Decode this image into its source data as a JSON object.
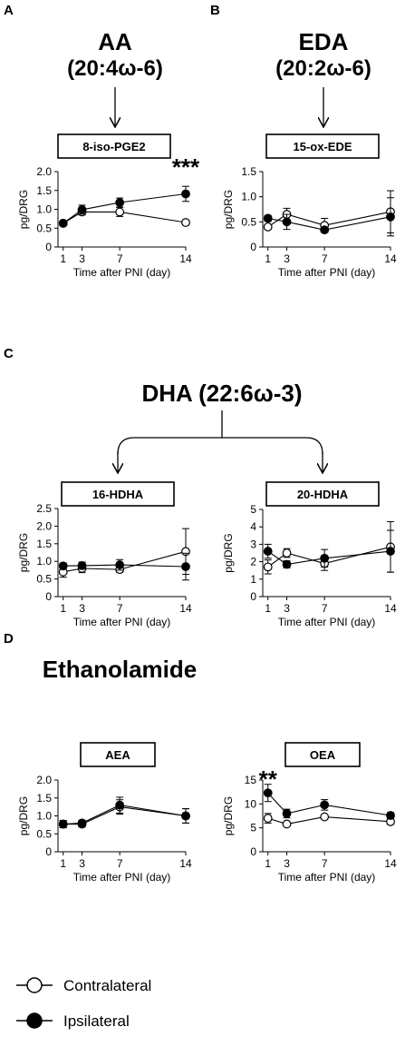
{
  "panels": {
    "A": {
      "letter": "A",
      "line1": "AA",
      "line2": "(20:4ω-6)"
    },
    "B": {
      "letter": "B",
      "line1": "EDA",
      "line2": "(20:2ω-6)"
    },
    "C": {
      "letter": "C",
      "line1": "DHA (22:6ω-3)"
    },
    "D": {
      "letter": "D",
      "line1": "Ethanolamide"
    }
  },
  "legend": {
    "contralateral": "Contralateral",
    "ipsilateral": "Ipsilateral"
  },
  "chart_data": [
    {
      "type": "line",
      "panel": "A",
      "title": "8-iso-PGE2",
      "xlabel": "Time after PNI (day)",
      "ylabel": "pg/DRG",
      "x": [
        1,
        3,
        7,
        14
      ],
      "ylim": [
        0,
        2.0
      ],
      "yticks": [
        "0",
        "0.5",
        "1.0",
        "1.5",
        "2.0"
      ],
      "yticks_values": [
        0,
        0.5,
        1.0,
        1.5,
        2.0
      ],
      "series": [
        {
          "name": "Contralateral",
          "values": [
            0.63,
            0.93,
            0.93,
            0.65
          ],
          "err": [
            0.03,
            0.08,
            0.12,
            0.06
          ]
        },
        {
          "name": "Ipsilateral",
          "values": [
            0.63,
            0.99,
            1.18,
            1.41
          ],
          "err": [
            0.03,
            0.12,
            0.12,
            0.2
          ]
        }
      ],
      "annotation": {
        "text": "***",
        "x": 14
      }
    },
    {
      "type": "line",
      "panel": "B",
      "title": "15-ox-EDE",
      "xlabel": "Time after PNI (day)",
      "ylabel": "pg/DRG",
      "x": [
        1,
        3,
        7,
        14
      ],
      "ylim": [
        0,
        1.5
      ],
      "yticks": [
        "0",
        "0.5",
        "1.0",
        "1.5"
      ],
      "yticks_values": [
        0,
        0.5,
        1.0,
        1.5
      ],
      "series": [
        {
          "name": "Contralateral",
          "values": [
            0.4,
            0.65,
            0.43,
            0.7
          ],
          "err": [
            0.04,
            0.12,
            0.14,
            0.42
          ]
        },
        {
          "name": "Ipsilateral",
          "values": [
            0.57,
            0.5,
            0.34,
            0.6
          ],
          "err": [
            0.06,
            0.15,
            0.05,
            0.38
          ]
        }
      ]
    },
    {
      "type": "line",
      "panel": "C",
      "title": "16-HDHA",
      "xlabel": "Time after PNI (day)",
      "ylabel": "pg/DRG",
      "x": [
        1,
        3,
        7,
        14
      ],
      "ylim": [
        0,
        2.5
      ],
      "yticks": [
        "0",
        "0.5",
        "1.0",
        "1.5",
        "2.0",
        "2.5"
      ],
      "yticks_values": [
        0,
        0.5,
        1.0,
        1.5,
        2.0,
        2.5
      ],
      "series": [
        {
          "name": "Contralateral",
          "values": [
            0.7,
            0.8,
            0.77,
            1.28
          ],
          "err": [
            0.15,
            0.12,
            0.08,
            0.65
          ]
        },
        {
          "name": "Ipsilateral",
          "values": [
            0.87,
            0.88,
            0.9,
            0.85
          ],
          "err": [
            0.08,
            0.1,
            0.15,
            0.38
          ]
        }
      ]
    },
    {
      "type": "line",
      "panel": "C",
      "title": "20-HDHA",
      "xlabel": "Time after PNI (day)",
      "ylabel": "pg/DRG",
      "x": [
        1,
        3,
        7,
        14
      ],
      "ylim": [
        0,
        5
      ],
      "yticks": [
        "0",
        "1",
        "2",
        "3",
        "4",
        "5"
      ],
      "yticks_values": [
        0,
        1,
        2,
        3,
        4,
        5
      ],
      "series": [
        {
          "name": "Contralateral",
          "values": [
            1.7,
            2.5,
            1.9,
            2.85
          ],
          "err": [
            0.4,
            0.25,
            0.4,
            1.45
          ]
        },
        {
          "name": "Ipsilateral",
          "values": [
            2.6,
            1.85,
            2.2,
            2.6
          ],
          "err": [
            0.4,
            0.2,
            0.5,
            1.2
          ]
        }
      ]
    },
    {
      "type": "line",
      "panel": "D",
      "title": "AEA",
      "xlabel": "Time after PNI (day)",
      "ylabel": "pg/DRG",
      "x": [
        1,
        3,
        7,
        14
      ],
      "ylim": [
        0,
        2.0
      ],
      "yticks": [
        "0",
        "0.5",
        "1.0",
        "1.5",
        "2.0"
      ],
      "yticks_values": [
        0,
        0.5,
        1.0,
        1.5,
        2.0
      ],
      "series": [
        {
          "name": "Contralateral",
          "values": [
            0.77,
            0.77,
            1.25,
            1.0
          ],
          "err": [
            0.1,
            0.08,
            0.2,
            0.2
          ]
        },
        {
          "name": "Ipsilateral",
          "values": [
            0.77,
            0.8,
            1.3,
            1.0
          ],
          "err": [
            0.1,
            0.08,
            0.22,
            0.2
          ]
        }
      ]
    },
    {
      "type": "line",
      "panel": "D",
      "title": "OEA",
      "xlabel": "Time after PNI (day)",
      "ylabel": "pg/DRG",
      "x": [
        1,
        3,
        7,
        14
      ],
      "ylim": [
        0,
        15
      ],
      "yticks": [
        "0",
        "5",
        "10",
        "15"
      ],
      "yticks_values": [
        0,
        5,
        10,
        15
      ],
      "series": [
        {
          "name": "Contralateral",
          "values": [
            7.0,
            5.8,
            7.3,
            6.3
          ],
          "err": [
            1.0,
            0.4,
            0.4,
            0.6
          ]
        },
        {
          "name": "Ipsilateral",
          "values": [
            12.3,
            8.0,
            9.8,
            7.6
          ],
          "err": [
            1.8,
            0.9,
            1.1,
            0.6
          ]
        }
      ],
      "annotation": {
        "text": "**",
        "x": 1
      }
    }
  ]
}
